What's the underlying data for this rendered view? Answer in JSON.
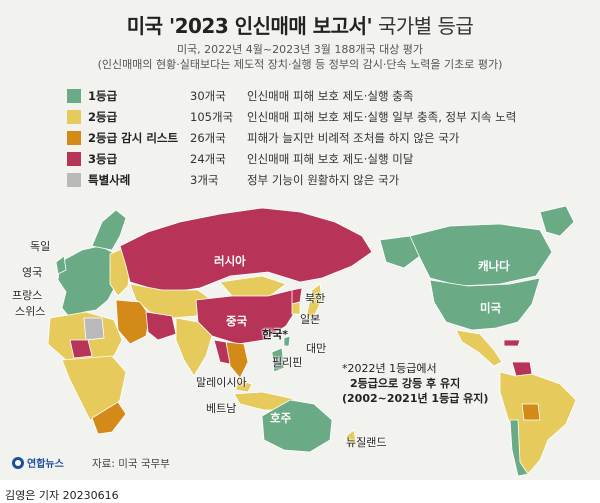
{
  "title": {
    "main": "미국 '2023 인신매매 보고서'",
    "suffix": " 국가별 등급"
  },
  "subtitle": {
    "line1": "미국, 2022년 4월~2023년 3월 188개국 대상 평가",
    "line2": "(인신매매의 현황·실태보다는 제도적 장치·실행 등 정부의 감시·단속 노력을 기초로 평가)"
  },
  "colors": {
    "tier1": "#6aab85",
    "tier2": "#e6cb5c",
    "tier2watch": "#d48a19",
    "tier3": "#b83358",
    "special": "#b9b9b9",
    "ocean": "#f2f2ef"
  },
  "legend": [
    {
      "name": "1등급",
      "count": "30개국",
      "desc": "인신매매 피해 보호 제도·실행 충족",
      "color": "#6aab85"
    },
    {
      "name": "2등급",
      "count": "105개국",
      "desc": "인신매매 피해 보호 제도·실행 일부 충족, 정부 지속 노력",
      "color": "#e6cb5c"
    },
    {
      "name": "2등급 감시 리스트",
      "count": "26개국",
      "desc": "피해가 늘지만 비례적 조처를 하지 않은 국가",
      "color": "#d48a19"
    },
    {
      "name": "3등급",
      "count": "24개국",
      "desc": "인신매매 피해 보호 제도·실행 미달",
      "color": "#b83358"
    },
    {
      "name": "특별사례",
      "count": "3개국",
      "desc": "정부 기능이 원활하지 않은 국가",
      "color": "#b9b9b9"
    }
  ],
  "map_labels": {
    "russia": "러시아",
    "canada": "캐나다",
    "usa": "미국",
    "china": "중국",
    "germany": "독일",
    "uk": "영국",
    "france": "프랑스",
    "switzerland": "스위스",
    "north_korea": "북한",
    "japan": "일본",
    "korea": "한국*",
    "taiwan": "대만",
    "philippines": "필리핀",
    "malaysia": "말레이시아",
    "vietnam": "베트남",
    "australia": "호주",
    "new_zealand": "뉴질랜드"
  },
  "note": {
    "line1": "*2022년 1등급에서",
    "line2": "2등급으로 강등 후 유지",
    "line3": "(2002~2021년 1등급 유지)"
  },
  "logo": "연합뉴스",
  "source": "자료: 미국 국무부",
  "credit": "김영은 기자  20230616"
}
